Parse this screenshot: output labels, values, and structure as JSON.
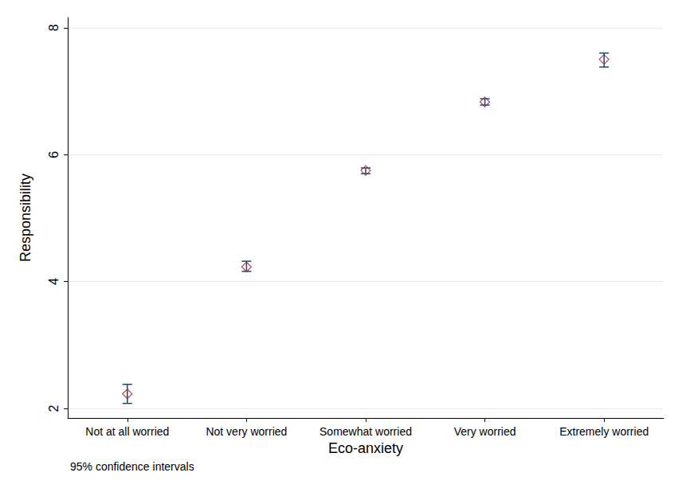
{
  "chart_data": {
    "type": "scatter",
    "x_label": "Eco-anxiety",
    "y_label": "Responsibility",
    "annotations": [
      "95% confidence intervals"
    ],
    "categories": [
      "Not at all worried",
      "Not very worried",
      "Somewhat worried",
      "Very worried",
      "Extremely worried"
    ],
    "values": [
      2.23,
      4.23,
      5.75,
      6.83,
      7.5
    ],
    "error_low": [
      2.08,
      4.16,
      5.7,
      6.78,
      7.38
    ],
    "error_high": [
      2.38,
      4.32,
      5.79,
      6.88,
      7.6
    ],
    "color": "#a0283c",
    "marker": "diamond",
    "ylim": [
      1.85,
      8.16
    ],
    "yticks": [
      2,
      4,
      6,
      8
    ],
    "grid": true,
    "data_labels": false
  }
}
